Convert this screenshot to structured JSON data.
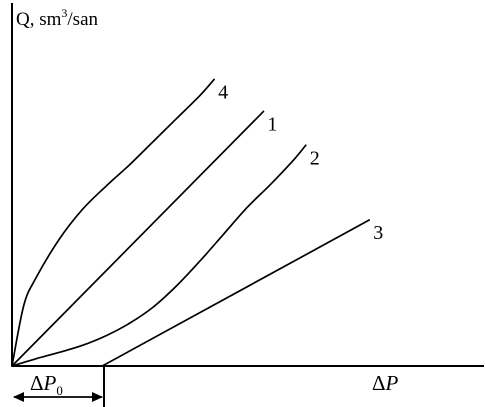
{
  "chart_data": {
    "type": "line",
    "title": "",
    "ylabel": "Q, sm",
    "ylabel_superscript": "3",
    "ylabel_unit_suffix": "/san",
    "xlabel": "P",
    "xlabel_prefix": "Δ",
    "threshold_label": "P",
    "threshold_label_prefix": "Δ",
    "threshold_label_subscript": "0",
    "xlim": [
      0,
      10
    ],
    "ylim": [
      0,
      10
    ],
    "grid": false,
    "legend": "none",
    "threshold_x": 1.92,
    "series": [
      {
        "label": "1",
        "x": [
          0,
          5.35
        ],
        "y": [
          0,
          7.15
        ]
      },
      {
        "label": "2",
        "x": [
          0,
          0.5,
          1,
          1.5,
          2,
          2.5,
          3,
          3.5,
          4,
          4.5,
          5,
          5.5,
          6,
          6.25
        ],
        "y": [
          0,
          0.2,
          0.38,
          0.58,
          0.85,
          1.2,
          1.65,
          2.25,
          2.95,
          3.7,
          4.45,
          5.1,
          5.8,
          6.2
        ]
      },
      {
        "label": "3",
        "x": [
          1.92,
          7.6
        ],
        "y": [
          0,
          4.1
        ]
      },
      {
        "label": "4",
        "x": [
          0,
          0.25,
          0.5,
          1,
          1.5,
          2,
          2.5,
          3,
          3.5,
          4,
          4.3
        ],
        "y": [
          0,
          1.7,
          2.45,
          3.55,
          4.4,
          5.05,
          5.65,
          6.3,
          6.95,
          7.6,
          8.05
        ]
      }
    ]
  }
}
